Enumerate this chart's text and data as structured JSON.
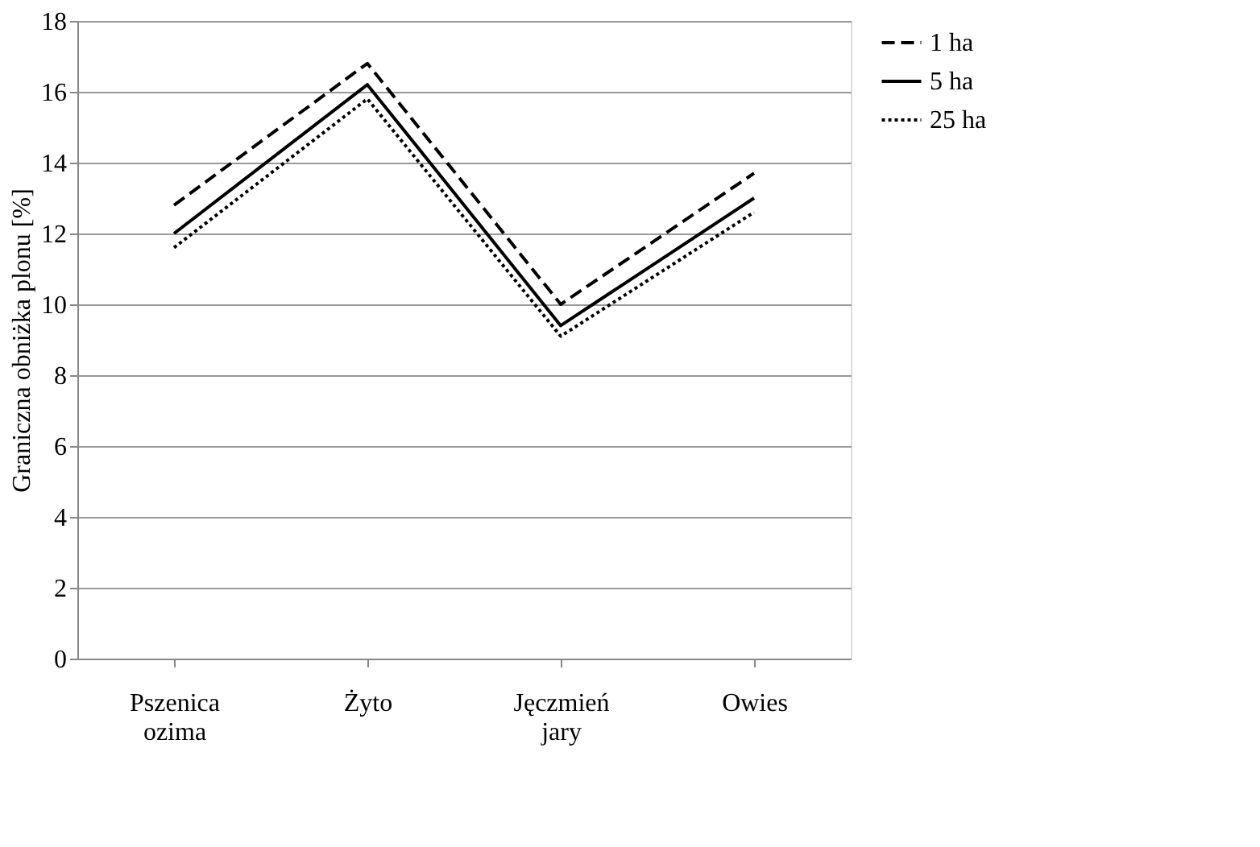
{
  "chart_data": {
    "type": "line",
    "ylabel": "Graniczna obniżka plonu [%]",
    "categories": [
      "Pszenica ozima",
      "Żyto",
      "Jęczmień jary",
      "Owies"
    ],
    "series": [
      {
        "name": "1 ha",
        "color": "#000000",
        "line_style": "dashed",
        "values": [
          12.8,
          16.8,
          10.0,
          13.7
        ]
      },
      {
        "name": "5 ha",
        "color": "#000000",
        "line_style": "solid",
        "values": [
          12.0,
          16.2,
          9.4,
          13.0
        ]
      },
      {
        "name": "25 ha",
        "color": "#000000",
        "line_style": "dotted",
        "values": [
          11.6,
          15.8,
          9.1,
          12.6
        ]
      }
    ],
    "ylim": [
      0,
      18
    ],
    "yticks": [
      0,
      2,
      4,
      6,
      8,
      10,
      12,
      14,
      16,
      18
    ],
    "grid": "y",
    "legend": "right",
    "marker": "none"
  }
}
